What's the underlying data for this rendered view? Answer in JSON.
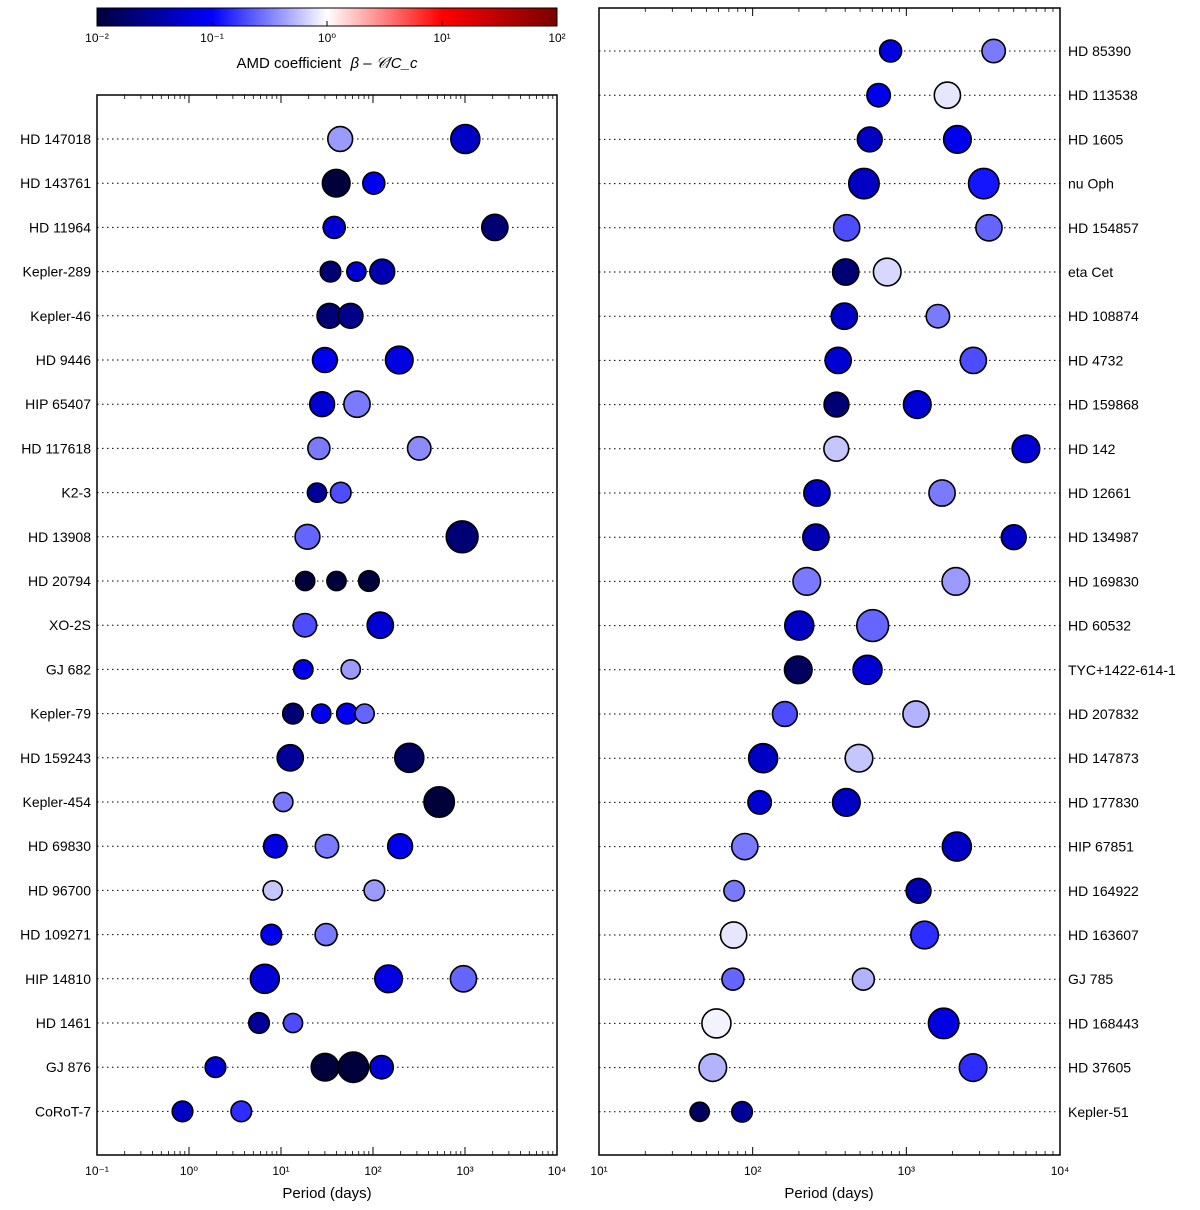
{
  "colorbar": {
    "label_prefix": "AMD coefficient",
    "label_math": "β – 𝒞/C_c",
    "ticks": [
      "10⁻²",
      "10⁻¹",
      "10⁰",
      "10¹",
      "10²"
    ],
    "colors": {
      "low": "#00003a",
      "mid_low": "#0000ff",
      "center": "#ffffff",
      "mid_high": "#ff0000",
      "high": "#7a0000"
    }
  },
  "chart_data": [
    {
      "type": "scatter",
      "panel": "left",
      "xlabel": "Period (days)",
      "xscale": "log",
      "xlim": [
        0.1,
        10000
      ],
      "x_tick_labels": [
        "10⁻¹",
        "10⁰",
        "10¹",
        "10²",
        "10³",
        "10⁴"
      ],
      "systems": [
        {
          "name": "HD 147018",
          "planets": [
            [
              44,
              0.4,
              0.6
            ],
            [
              1008,
              0.05,
              0.75
            ]
          ]
        },
        {
          "name": "HD 143761",
          "planets": [
            [
              39.8,
              0.01,
              0.7
            ],
            [
              102,
              0.08,
              0.5
            ]
          ]
        },
        {
          "name": "HD 11964",
          "planets": [
            [
              37.9,
              0.06,
              0.5
            ],
            [
              2110,
              0.02,
              0.65
            ]
          ]
        },
        {
          "name": "Kepler-289",
          "planets": [
            [
              34.5,
              0.02,
              0.45
            ],
            [
              66,
              0.06,
              0.4
            ],
            [
              126,
              0.04,
              0.6
            ]
          ]
        },
        {
          "name": "Kepler-46",
          "planets": [
            [
              33.6,
              0.02,
              0.6
            ],
            [
              57,
              0.025,
              0.6
            ]
          ]
        },
        {
          "name": "HD 9446",
          "planets": [
            [
              30,
              0.08,
              0.6
            ],
            [
              193,
              0.07,
              0.7
            ]
          ]
        },
        {
          "name": "HIP 65407",
          "planets": [
            [
              28,
              0.06,
              0.6
            ],
            [
              67,
              0.3,
              0.65
            ]
          ]
        },
        {
          "name": "HD 117618",
          "planets": [
            [
              25.8,
              0.3,
              0.5
            ],
            [
              318,
              0.35,
              0.55
            ]
          ]
        },
        {
          "name": "K2-3",
          "planets": [
            [
              24.6,
              0.03,
              0.4
            ],
            [
              44.6,
              0.2,
              0.45
            ]
          ]
        },
        {
          "name": "HD 13908",
          "planets": [
            [
              19.4,
              0.25,
              0.6
            ],
            [
              931,
              0.02,
              0.85
            ]
          ]
        },
        {
          "name": "HD 20794",
          "planets": [
            [
              18.3,
              0.01,
              0.4
            ],
            [
              40.1,
              0.01,
              0.4
            ],
            [
              90.3,
              0.01,
              0.45
            ]
          ]
        },
        {
          "name": "XO-2S",
          "planets": [
            [
              18.2,
              0.2,
              0.55
            ],
            [
              120,
              0.06,
              0.65
            ]
          ]
        },
        {
          "name": "GJ 682",
          "planets": [
            [
              17.5,
              0.08,
              0.4
            ],
            [
              57.3,
              0.4,
              0.4
            ]
          ]
        },
        {
          "name": "Kepler-79",
          "planets": [
            [
              13.5,
              0.02,
              0.45
            ],
            [
              27.4,
              0.08,
              0.4
            ],
            [
              52.1,
              0.09,
              0.45
            ],
            [
              81.1,
              0.25,
              0.4
            ]
          ]
        },
        {
          "name": "HD 159243",
          "planets": [
            [
              12.6,
              0.03,
              0.65
            ],
            [
              248,
              0.015,
              0.75
            ]
          ]
        },
        {
          "name": "Kepler-454",
          "planets": [
            [
              10.6,
              0.3,
              0.4
            ],
            [
              524,
              0.01,
              0.8
            ]
          ]
        },
        {
          "name": "HD 69830",
          "planets": [
            [
              8.67,
              0.07,
              0.55
            ],
            [
              31.6,
              0.3,
              0.55
            ],
            [
              197,
              0.08,
              0.6
            ]
          ]
        },
        {
          "name": "HD 96700",
          "planets": [
            [
              8.13,
              0.6,
              0.4
            ],
            [
              103.5,
              0.4,
              0.45
            ]
          ]
        },
        {
          "name": "HD 109271",
          "planets": [
            [
              7.85,
              0.08,
              0.45
            ],
            [
              30.9,
              0.3,
              0.5
            ]
          ]
        },
        {
          "name": "HIP 14810",
          "planets": [
            [
              6.67,
              0.06,
              0.75
            ],
            [
              147.7,
              0.07,
              0.7
            ],
            [
              962,
              0.25,
              0.65
            ]
          ]
        },
        {
          "name": "HD 1461",
          "planets": [
            [
              5.77,
              0.03,
              0.45
            ],
            [
              13.5,
              0.2,
              0.4
            ]
          ]
        },
        {
          "name": "GJ 876",
          "planets": [
            [
              1.94,
              0.06,
              0.45
            ],
            [
              30.1,
              0.01,
              0.7
            ],
            [
              61.1,
              0.01,
              0.8
            ],
            [
              124,
              0.06,
              0.55
            ]
          ]
        },
        {
          "name": "CoRoT-7",
          "planets": [
            [
              0.85,
              0.05,
              0.45
            ],
            [
              3.7,
              0.15,
              0.45
            ]
          ]
        }
      ]
    },
    {
      "type": "scatter",
      "panel": "right",
      "xlabel": "Period (days)",
      "xscale": "log",
      "xlim": [
        10,
        10000
      ],
      "x_tick_labels": [
        "10¹",
        "10²",
        "10³",
        "10⁴"
      ],
      "systems": [
        {
          "name": "HD 85390",
          "planets": [
            [
              790,
              0.07,
              0.5
            ],
            [
              3700,
              0.3,
              0.55
            ]
          ]
        },
        {
          "name": "HD 113538",
          "planets": [
            [
              660,
              0.08,
              0.55
            ],
            [
              1850,
              0.8,
              0.65
            ]
          ]
        },
        {
          "name": "HD 1605",
          "planets": [
            [
              578,
              0.05,
              0.6
            ],
            [
              2150,
              0.08,
              0.7
            ]
          ]
        },
        {
          "name": "nu Oph",
          "planets": [
            [
              530,
              0.05,
              0.8
            ],
            [
              3190,
              0.12,
              0.8
            ]
          ]
        },
        {
          "name": "HD 154857",
          "planets": [
            [
              409,
              0.2,
              0.65
            ],
            [
              3450,
              0.25,
              0.65
            ]
          ]
        },
        {
          "name": "eta Cet",
          "planets": [
            [
              403,
              0.02,
              0.65
            ],
            [
              751,
              0.7,
              0.7
            ]
          ]
        },
        {
          "name": "HD 108874",
          "planets": [
            [
              395,
              0.05,
              0.65
            ],
            [
              1605,
              0.3,
              0.55
            ]
          ]
        },
        {
          "name": "HD 4732",
          "planets": [
            [
              360,
              0.06,
              0.65
            ],
            [
              2730,
              0.2,
              0.65
            ]
          ]
        },
        {
          "name": "HD 159868",
          "planets": [
            [
              351,
              0.02,
              0.6
            ],
            [
              1178,
              0.06,
              0.7
            ]
          ]
        },
        {
          "name": "HD 142",
          "planets": [
            [
              350,
              0.6,
              0.6
            ],
            [
              6000,
              0.06,
              0.7
            ]
          ]
        },
        {
          "name": "HD 12661",
          "planets": [
            [
              262,
              0.05,
              0.65
            ],
            [
              1708,
              0.3,
              0.65
            ]
          ]
        },
        {
          "name": "HD 134987",
          "planets": [
            [
              258,
              0.04,
              0.65
            ],
            [
              5000,
              0.05,
              0.6
            ]
          ]
        },
        {
          "name": "HD 169830",
          "planets": [
            [
              225,
              0.3,
              0.7
            ],
            [
              2100,
              0.4,
              0.7
            ]
          ]
        },
        {
          "name": "HD 60532",
          "planets": [
            [
              201,
              0.05,
              0.75
            ],
            [
              604,
              0.25,
              0.85
            ]
          ]
        },
        {
          "name": "TYC+1422-614-1",
          "planets": [
            [
              198,
              0.015,
              0.7
            ],
            [
              559,
              0.06,
              0.75
            ]
          ]
        },
        {
          "name": "HD 207832",
          "planets": [
            [
              162,
              0.2,
              0.6
            ],
            [
              1156,
              0.5,
              0.65
            ]
          ]
        },
        {
          "name": "HD 147873",
          "planets": [
            [
              117,
              0.05,
              0.75
            ],
            [
              492,
              0.6,
              0.7
            ]
          ]
        },
        {
          "name": "HD 177830",
          "planets": [
            [
              111,
              0.06,
              0.55
            ],
            [
              407,
              0.05,
              0.7
            ]
          ]
        },
        {
          "name": "HIP 67851",
          "planets": [
            [
              88.9,
              0.3,
              0.65
            ],
            [
              2131,
              0.05,
              0.75
            ]
          ]
        },
        {
          "name": "HD 164922",
          "planets": [
            [
              75.8,
              0.3,
              0.45
            ],
            [
              1201,
              0.04,
              0.6
            ]
          ]
        },
        {
          "name": "HD 163607",
          "planets": [
            [
              75.2,
              0.8,
              0.65
            ],
            [
              1314,
              0.15,
              0.7
            ]
          ]
        },
        {
          "name": "GJ 785",
          "planets": [
            [
              74.4,
              0.25,
              0.5
            ],
            [
              525,
              0.5,
              0.5
            ]
          ]
        },
        {
          "name": "HD 168443",
          "planets": [
            [
              58.1,
              0.9,
              0.75
            ],
            [
              1749,
              0.07,
              0.8
            ]
          ]
        },
        {
          "name": "HD 37605",
          "planets": [
            [
              55,
              0.5,
              0.7
            ],
            [
              2720,
              0.15,
              0.7
            ]
          ]
        },
        {
          "name": "Kepler-51",
          "planets": [
            [
              45.2,
              0.015,
              0.4
            ],
            [
              85.3,
              0.03,
              0.45
            ]
          ]
        }
      ]
    }
  ]
}
